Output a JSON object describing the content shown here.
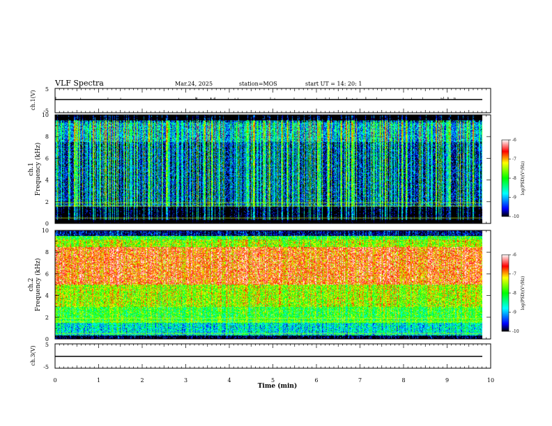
{
  "header": {
    "title": "VLF Spectra",
    "date": "Mar.24, 2025",
    "station": "station=MOS",
    "start": "start  UT =    14: 20: 1"
  },
  "chart_data": [
    {
      "type": "line",
      "name": "ch1-voltage",
      "ylabel": "ch.1(V)",
      "xlim": [
        0,
        10
      ],
      "ylim": [
        -5,
        5
      ],
      "y_ticks": [
        "5",
        "-5"
      ],
      "trace_level": 0
    },
    {
      "type": "heatmap",
      "name": "ch1-spectrogram",
      "ylabel": "ch.1\nFrequency (kHz)",
      "xlim": [
        0,
        10
      ],
      "ylim": [
        0,
        10
      ],
      "y_ticks": [
        "0",
        "2",
        "4",
        "6",
        "8",
        "10"
      ],
      "data_end_min": 9.85,
      "colorbar": {
        "label": "log(PSD)(V²/Hz)",
        "range": [
          -10,
          -6
        ],
        "ticks": [
          "-6",
          "-7",
          "-8",
          "-9",
          "-10"
        ]
      }
    },
    {
      "type": "heatmap",
      "name": "ch2-spectrogram",
      "ylabel": "ch.2\nFrequency (kHz)",
      "xlim": [
        0,
        10
      ],
      "ylim": [
        0,
        10
      ],
      "y_ticks": [
        "0",
        "2",
        "4",
        "6",
        "8",
        "10"
      ],
      "data_end_min": 9.85,
      "colorbar": {
        "label": "log(PSD)(V²/Hz)",
        "range": [
          -10,
          -6
        ],
        "ticks": [
          "-6",
          "-7",
          "-8",
          "-9",
          "-10"
        ]
      }
    },
    {
      "type": "line",
      "name": "ch3-voltage",
      "ylabel": "ch.3(V)",
      "xlim": [
        0,
        10
      ],
      "ylim": [
        -5,
        5
      ],
      "y_ticks": [
        "5",
        "-5"
      ],
      "trace_level": 0
    }
  ],
  "x_axis": {
    "label": "Time (min)",
    "ticks": [
      "0",
      "1",
      "2",
      "3",
      "4",
      "5",
      "6",
      "7",
      "8",
      "9",
      "10"
    ]
  }
}
